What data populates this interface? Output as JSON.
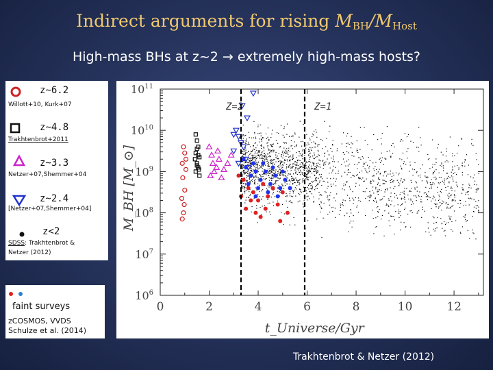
{
  "title": {
    "prefix": "Indirect arguments for rising ",
    "m1": "M",
    "sub1": "BH",
    "slash": "/",
    "m2": "M",
    "sub2": "Host"
  },
  "subtitle": "High-mass BHs at z~2 → extremely high-mass hosts?",
  "legend": {
    "items": [
      {
        "label": "z~6.2",
        "ref": "Willott+10, Kurk+07",
        "color": "#cc2222",
        "marker": "circle"
      },
      {
        "label": "z~4.8",
        "ref": "Trakhtenbrot+2011",
        "color": "#111111",
        "marker": "square"
      },
      {
        "label": "z~3.3",
        "ref": "Netzer+07,Shemmer+04",
        "color": "#cc22cc",
        "marker": "triangle-up"
      },
      {
        "label": "z~2.4",
        "ref": "[Netzer+07,Shemmer+04]",
        "color": "#2233cc",
        "marker": "triangle-down"
      },
      {
        "label": "z<2",
        "ref_link": "SDSS",
        "ref_rest": ": Trakhtenbrot & ",
        "ref_line2": "Netzer (2012)",
        "color": "#111111",
        "marker": "dot"
      }
    ]
  },
  "faint": {
    "title": "faint surveys",
    "line1": "zCOSMOS, VVDS",
    "line2": "Schulze et al. (2014)",
    "red": "#e02020",
    "blue": "#2a7fd0"
  },
  "credit": "Trakhtenbrot & Netzer (2012)",
  "chart_data": {
    "type": "scatter",
    "xlabel": "t_Universe/Gyr",
    "ylabel": "M_BH [M_⊙]",
    "xlim": [
      0,
      13.2
    ],
    "ylim_log10": [
      6,
      11
    ],
    "xticks": [
      0,
      2,
      4,
      6,
      8,
      10,
      12
    ],
    "yticks": [
      {
        "log": 6,
        "label": "10^6"
      },
      {
        "log": 7,
        "label": "10^7"
      },
      {
        "log": 8,
        "label": "10^8"
      },
      {
        "log": 9,
        "label": "10^9"
      },
      {
        "log": 10,
        "label": "10^10"
      },
      {
        "log": 11,
        "label": "10^11"
      }
    ],
    "vlines": [
      {
        "x": 3.3,
        "label": "Z=2"
      },
      {
        "x": 5.9,
        "label": "Z=1"
      }
    ],
    "series": [
      {
        "name": "z<2 SDSS (dense cloud)",
        "marker": "dot",
        "color": "#000000",
        "x_range": [
          3.3,
          13.0
        ],
        "log_range": [
          7.3,
          10.3
        ],
        "approx_points": 2000
      },
      {
        "name": "z~6.2",
        "marker": "circle",
        "color": "#cc2222",
        "points": [
          [
            0.95,
            9.6
          ],
          [
            1.0,
            9.45
          ],
          [
            0.9,
            9.2
          ],
          [
            1.05,
            9.05
          ],
          [
            0.92,
            8.85
          ],
          [
            1.0,
            8.55
          ],
          [
            0.88,
            8.35
          ],
          [
            0.98,
            8.2
          ],
          [
            0.95,
            8.0
          ],
          [
            0.9,
            7.85
          ],
          [
            1.05,
            9.3
          ]
        ]
      },
      {
        "name": "z~4.8",
        "marker": "square",
        "color": "#111111",
        "points": [
          [
            1.45,
            9.9
          ],
          [
            1.5,
            9.75
          ],
          [
            1.55,
            9.6
          ],
          [
            1.45,
            9.45
          ],
          [
            1.6,
            9.35
          ],
          [
            1.5,
            9.2
          ],
          [
            1.55,
            9.1
          ],
          [
            1.45,
            9.0
          ],
          [
            1.6,
            8.9
          ],
          [
            1.5,
            9.55
          ],
          [
            1.42,
            9.3
          ],
          [
            1.58,
            9.05
          ],
          [
            1.5,
            9.15
          ],
          [
            1.55,
            9.4
          ]
        ]
      },
      {
        "name": "z~3.3",
        "marker": "triangle-up",
        "color": "#cc22cc",
        "points": [
          [
            2.0,
            9.6
          ],
          [
            2.1,
            9.4
          ],
          [
            2.15,
            9.2
          ],
          [
            2.3,
            9.1
          ],
          [
            2.4,
            9.3
          ],
          [
            2.6,
            9.05
          ],
          [
            2.9,
            9.4
          ],
          [
            2.2,
            9.0
          ],
          [
            2.05,
            8.9
          ],
          [
            2.5,
            8.85
          ],
          [
            2.35,
            9.5
          ],
          [
            2.75,
            9.2
          ]
        ]
      },
      {
        "name": "z~2.4",
        "marker": "triangle-down",
        "color": "#2233cc",
        "points": [
          [
            3.1,
            10.0
          ],
          [
            3.2,
            9.85
          ],
          [
            3.3,
            9.7
          ],
          [
            3.4,
            9.6
          ],
          [
            3.0,
            9.5
          ],
          [
            3.55,
            10.3
          ],
          [
            3.5,
            9.3
          ],
          [
            3.2,
            9.2
          ],
          [
            3.6,
            9.1
          ],
          [
            3.35,
            10.6
          ],
          [
            3.8,
            10.9
          ],
          [
            3.0,
            9.9
          ]
        ]
      },
      {
        "name": "faint surveys (red)",
        "marker": "dot",
        "color": "#e02020",
        "points": [
          [
            3.4,
            8.8
          ],
          [
            3.6,
            8.6
          ],
          [
            3.8,
            8.5
          ],
          [
            4.0,
            8.3
          ],
          [
            4.2,
            8.7
          ],
          [
            3.5,
            8.1
          ],
          [
            4.4,
            8.4
          ],
          [
            3.9,
            8.0
          ],
          [
            4.6,
            8.6
          ],
          [
            4.8,
            8.2
          ],
          [
            3.3,
            8.4
          ],
          [
            4.1,
            7.9
          ],
          [
            5.0,
            8.5
          ],
          [
            4.3,
            8.1
          ],
          [
            3.7,
            8.3
          ],
          [
            5.2,
            8.0
          ],
          [
            3.2,
            8.9
          ],
          [
            4.9,
            7.8
          ]
        ]
      },
      {
        "name": "faint surveys (blue)",
        "marker": "dot",
        "color": "#2233ee",
        "points": [
          [
            3.5,
            9.1
          ],
          [
            3.7,
            8.9
          ],
          [
            3.9,
            9.0
          ],
          [
            4.1,
            8.8
          ],
          [
            4.3,
            9.0
          ],
          [
            4.5,
            8.7
          ],
          [
            3.6,
            8.7
          ],
          [
            4.0,
            8.6
          ],
          [
            4.7,
            8.9
          ],
          [
            4.9,
            8.6
          ],
          [
            5.1,
            8.8
          ],
          [
            3.8,
            9.2
          ],
          [
            4.2,
            9.2
          ],
          [
            4.4,
            8.5
          ],
          [
            5.3,
            8.6
          ],
          [
            3.4,
            9.3
          ],
          [
            4.6,
            9.1
          ],
          [
            5.0,
            9.0
          ],
          [
            3.9,
            8.4
          ],
          [
            4.8,
            8.4
          ]
        ]
      }
    ]
  }
}
